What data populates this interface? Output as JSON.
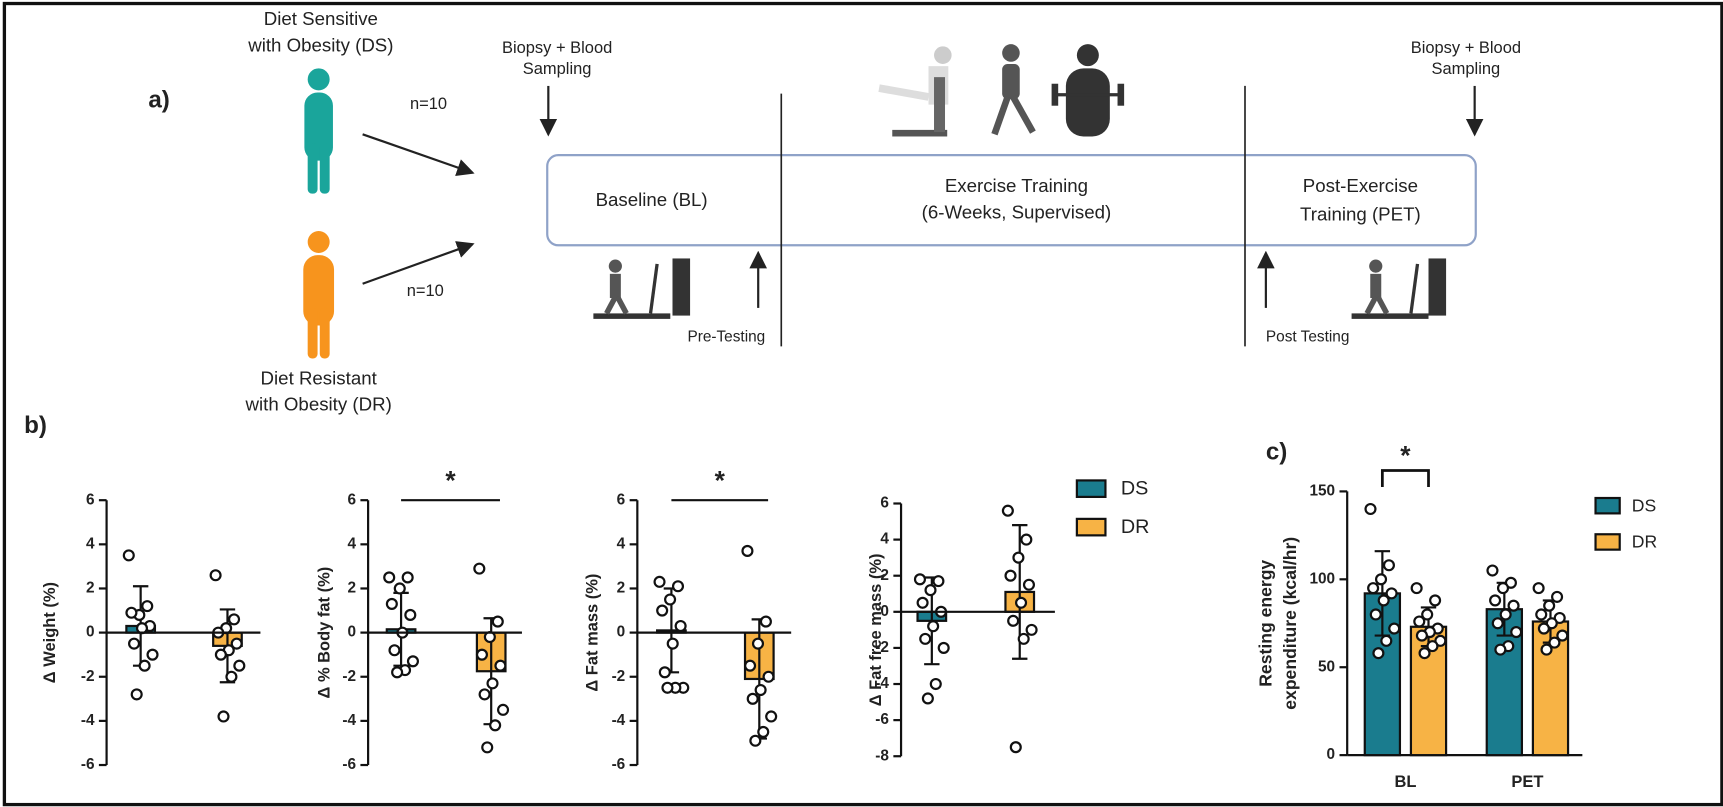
{
  "figure_a": {
    "label": "a)",
    "ds_label": [
      "Diet Sensitive",
      "with Obesity (DS)"
    ],
    "dr_label": [
      "Diet Resistant",
      "with Obesity (DR)"
    ],
    "ds_n": "n=10",
    "dr_n": "n=10",
    "sampling_left": [
      "Biopsy + Blood",
      "Sampling"
    ],
    "sampling_right": [
      "Biopsy + Blood",
      "Sampling"
    ],
    "phases": [
      [
        "Baseline (BL)"
      ],
      [
        "Exercise Training",
        "(6-Weeks, Supervised)"
      ],
      [
        "Post-Exercise",
        "Training (PET)"
      ]
    ],
    "pre_testing": "Pre-Testing",
    "post_testing": "Post Testing"
  },
  "panel_b_label": "b)",
  "panel_c_label": "c)",
  "legend_b": [
    {
      "name": "DS",
      "color": "#1a7c8e"
    },
    {
      "name": "DR",
      "color": "#f7b345"
    }
  ],
  "chart_data": [
    {
      "type": "bar",
      "ylabel": "Δ Weight (%)",
      "categories": [
        null,
        null
      ],
      "values": [
        0.3,
        -0.6
      ],
      "errors": [
        1.8,
        1.65
      ],
      "colors": [
        "#1a7c8e",
        "#f7b345"
      ],
      "points": [
        [
          3.5,
          1.2,
          0.8,
          0.9,
          0.3,
          0.2,
          -0.5,
          -1.0,
          -1.5,
          -2.8
        ],
        [
          2.6,
          0.6,
          0.2,
          0,
          -0.5,
          -0.8,
          -1.0,
          -1.5,
          -2.0,
          -3.8
        ]
      ],
      "ylim": [
        -6,
        6
      ],
      "yticks": [
        -6,
        -4,
        -2,
        0,
        2,
        4,
        6
      ]
    },
    {
      "type": "bar",
      "ylabel": "Δ % Body fat (%)",
      "categories": [
        null,
        null
      ],
      "values": [
        0.15,
        -1.75
      ],
      "errors": [
        1.65,
        2.4
      ],
      "colors": [
        "#1a7c8e",
        "#f7b345"
      ],
      "points": [
        [
          2.5,
          2.5,
          2.0,
          1.3,
          0.8,
          0,
          -0.8,
          -1.3,
          -1.7,
          -1.8
        ],
        [
          2.9,
          0.5,
          -0.2,
          -1.0,
          -1.5,
          -2.3,
          -2.8,
          -3.5,
          -4.2,
          -5.2
        ]
      ],
      "ylim": [
        -6,
        6
      ],
      "yticks": [
        -6,
        -4,
        -2,
        0,
        2,
        4,
        6
      ],
      "significance": "*"
    },
    {
      "type": "bar",
      "ylabel": "Δ Fat mass (%)",
      "categories": [
        null,
        null
      ],
      "values": [
        0.1,
        -2.1
      ],
      "errors": [
        1.9,
        2.7
      ],
      "colors": [
        "#1a7c8e",
        "#f7b345"
      ],
      "points": [
        [
          2.3,
          2.1,
          1.5,
          1.0,
          0.3,
          -0.5,
          -1.8,
          -2.5,
          -2.5,
          -2.5
        ],
        [
          3.7,
          0.5,
          -0.5,
          -1.5,
          -2.0,
          -2.6,
          -3.0,
          -3.8,
          -4.5,
          -4.9
        ]
      ],
      "ylim": [
        -6,
        6
      ],
      "yticks": [
        -6,
        -4,
        -2,
        0,
        2,
        4,
        6
      ],
      "significance": "*"
    },
    {
      "type": "bar",
      "ylabel": "Δ Fat free mass (%)",
      "categories": [
        null,
        null
      ],
      "values": [
        -0.5,
        1.1
      ],
      "errors": [
        2.4,
        3.7
      ],
      "colors": [
        "#1a7c8e",
        "#f7b345"
      ],
      "points": [
        [
          1.8,
          1.7,
          1.2,
          0.5,
          0,
          -0.8,
          -1.5,
          -2.0,
          -4.0,
          -4.8
        ],
        [
          5.6,
          4.0,
          3.0,
          2.0,
          1.5,
          0.5,
          -0.5,
          -1.0,
          -1.5,
          -7.5
        ]
      ],
      "ylim": [
        -8,
        6
      ],
      "yticks": [
        -8,
        -6,
        -4,
        -2,
        0,
        2,
        4,
        6
      ]
    },
    {
      "type": "grouped_bar",
      "ylabel": [
        "Resting energy",
        "expenditure (kcal/hr)"
      ],
      "categories": [
        "BL",
        "PET"
      ],
      "series": [
        {
          "name": "DS",
          "color": "#1a7c8e",
          "values": [
            92,
            83
          ],
          "errors": [
            24,
            15
          ],
          "points": [
            [
              140,
              108,
              100,
              95,
              92,
              88,
              80,
              72,
              65,
              58
            ],
            [
              105,
              98,
              95,
              88,
              85,
              80,
              75,
              70,
              62,
              60
            ]
          ]
        },
        {
          "name": "DR",
          "color": "#f7b345",
          "values": [
            73,
            76
          ],
          "errors": [
            11,
            12
          ],
          "points": [
            [
              95,
              88,
              80,
              76,
              72,
              70,
              68,
              65,
              62,
              58
            ],
            [
              95,
              90,
              85,
              80,
              78,
              75,
              72,
              68,
              64,
              60
            ]
          ]
        }
      ],
      "ylim": [
        0,
        150
      ],
      "yticks": [
        0,
        50,
        100,
        150
      ],
      "significance": "*"
    }
  ]
}
